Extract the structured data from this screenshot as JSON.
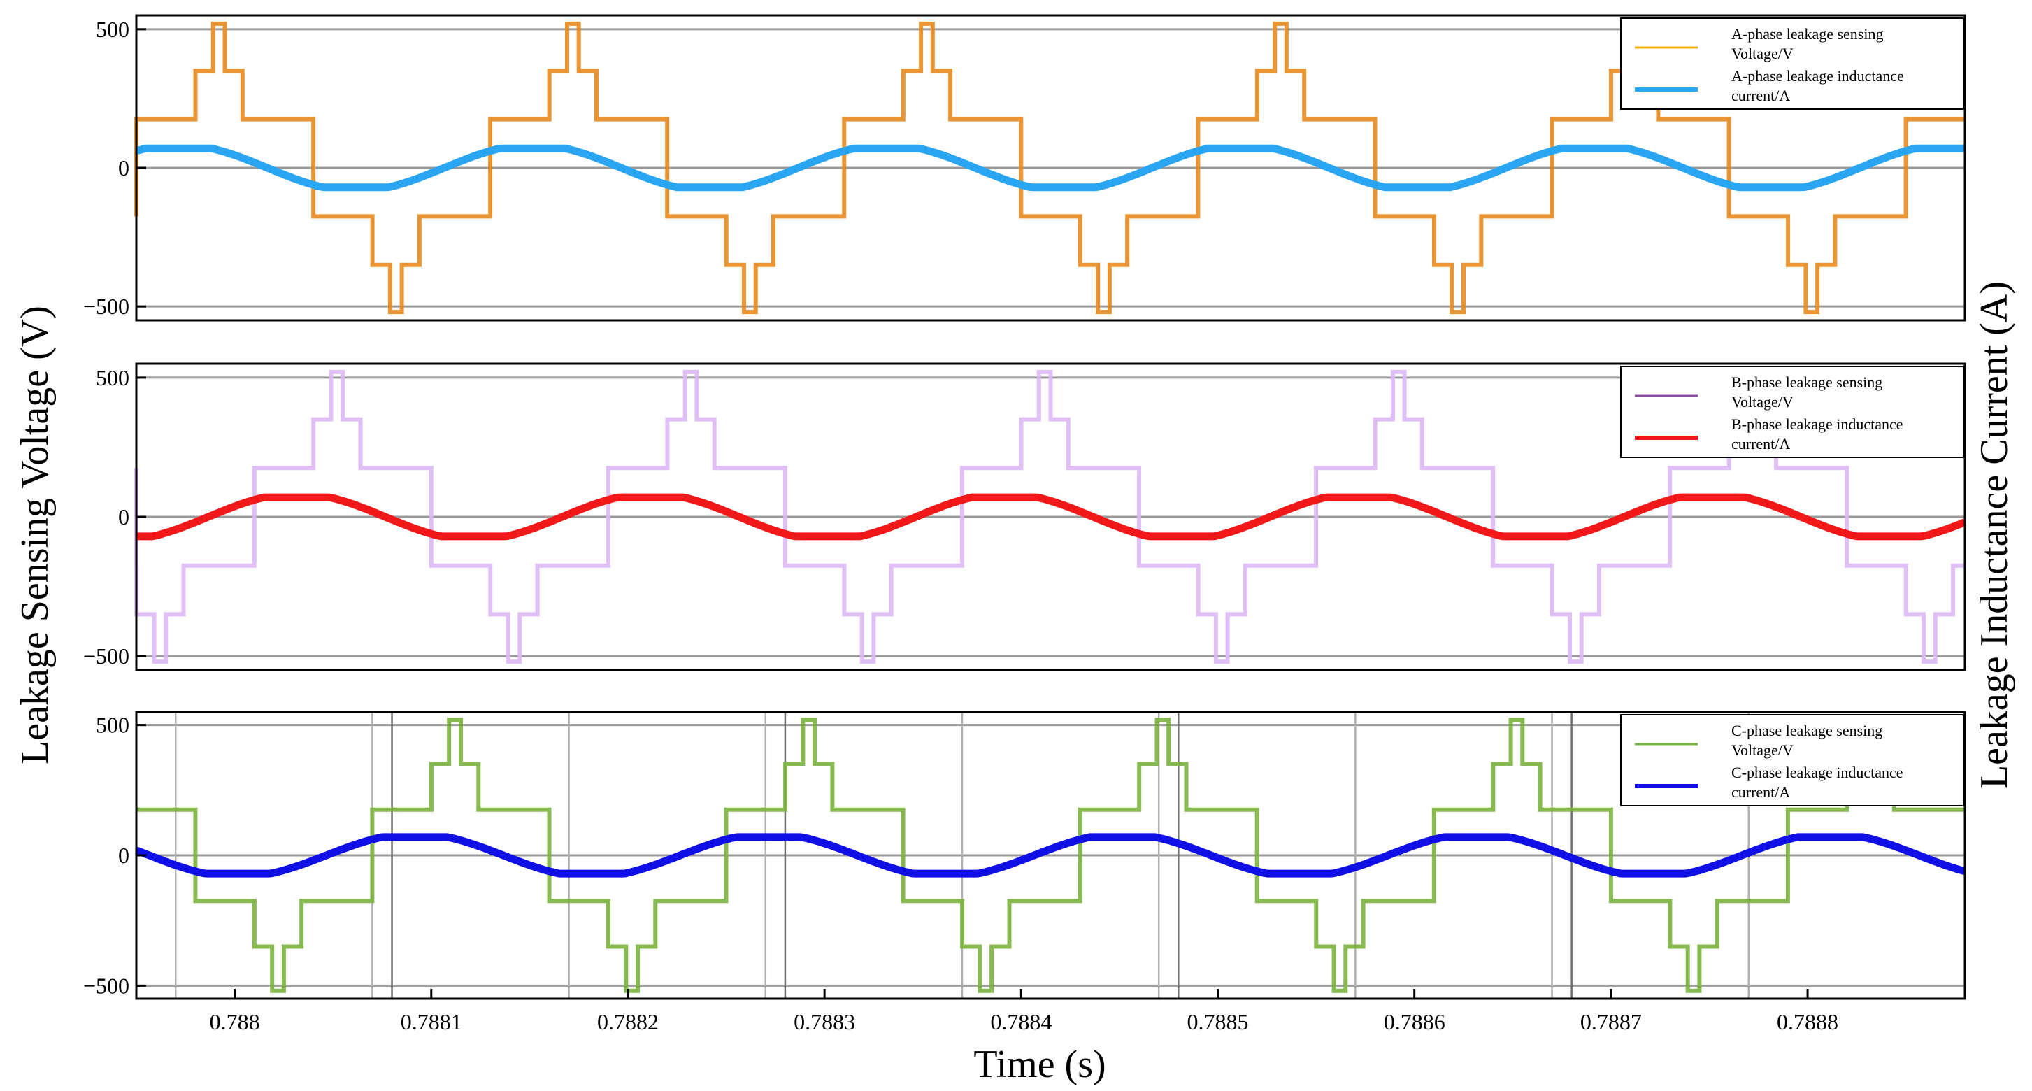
{
  "chart_data": {
    "type": "line",
    "xlabel": "Time (s)",
    "ylabel_left": "Leakage Sensing Voltage (V)",
    "ylabel_right": "Leakage Inductance Current (A)",
    "xlim": [
      0.78795,
      0.78888
    ],
    "x_ticks": [
      "0.788",
      "0.7881",
      "0.7882",
      "0.7883",
      "0.7884",
      "0.7885",
      "0.7886",
      "0.7887",
      "0.7888"
    ],
    "x_tick_values": [
      0.788,
      0.7881,
      0.7882,
      0.7883,
      0.7884,
      0.7885,
      0.7886,
      0.7887,
      0.7888
    ],
    "signal_period": 0.00018,
    "voltage_levels": [
      -520,
      -350,
      -175,
      0,
      175,
      350,
      520
    ],
    "current_amplitude": 70,
    "panels": [
      {
        "ylim": [
          -550,
          550
        ],
        "y_ticks": [
          "500",
          "0",
          "−500"
        ],
        "y_tick_values": [
          500,
          0,
          -500
        ],
        "grid": "horizontal",
        "legend": "top-right",
        "series": [
          {
            "name": "A-phase leakage sensing Voltage/V",
            "kind": "voltage",
            "color": "#e8891e",
            "legend_color": "#f0b000",
            "phase_start": 0.78795
          },
          {
            "name": "A-phase leakage inductance current/A",
            "kind": "current",
            "color": "#2aa5f2",
            "legend_color": "#2aa5f2",
            "phase_start": 0.78795
          }
        ],
        "legend_lines": [
          [
            "A-phase leakage sensing",
            "Voltage/V"
          ],
          [
            "A-phase leakage inductance",
            "current/A"
          ]
        ]
      },
      {
        "ylim": [
          -550,
          550
        ],
        "y_ticks": [
          "500",
          "0",
          "−500"
        ],
        "y_tick_values": [
          500,
          0,
          -500
        ],
        "grid": "horizontal",
        "legend": "top-right",
        "series": [
          {
            "name": "B-phase leakage sensing Voltage/V",
            "kind": "voltage",
            "color": "#dcb8f5",
            "legend_color": "#8e4aa8",
            "phase_start": 0.78801
          },
          {
            "name": "B-phase leakage inductance current/A",
            "kind": "current",
            "color": "#f01818",
            "legend_color": "#f01818",
            "phase_start": 0.78801
          }
        ],
        "legend_lines": [
          [
            "B-phase leakage sensing",
            "Voltage/V"
          ],
          [
            "B-phase leakage inductance",
            "current/A"
          ]
        ]
      },
      {
        "ylim": [
          -550,
          550
        ],
        "y_ticks": [
          "500",
          "0",
          "−500"
        ],
        "y_tick_values": [
          500,
          0,
          -500
        ],
        "grid": "both",
        "legend": "top-right",
        "series": [
          {
            "name": "C-phase leakage sensing Voltage/V",
            "kind": "voltage",
            "color": "#7ab23e",
            "legend_color": "#7ab23e",
            "phase_start": 0.78789
          },
          {
            "name": "C-phase leakage inductance current/A",
            "kind": "current",
            "color": "#1010e6",
            "legend_color": "#1010e6",
            "phase_start": 0.78789
          }
        ],
        "legend_lines": [
          [
            "C-phase leakage sensing",
            "Voltage/V"
          ],
          [
            "C-phase leakage inductance",
            "current/A"
          ]
        ]
      }
    ]
  }
}
